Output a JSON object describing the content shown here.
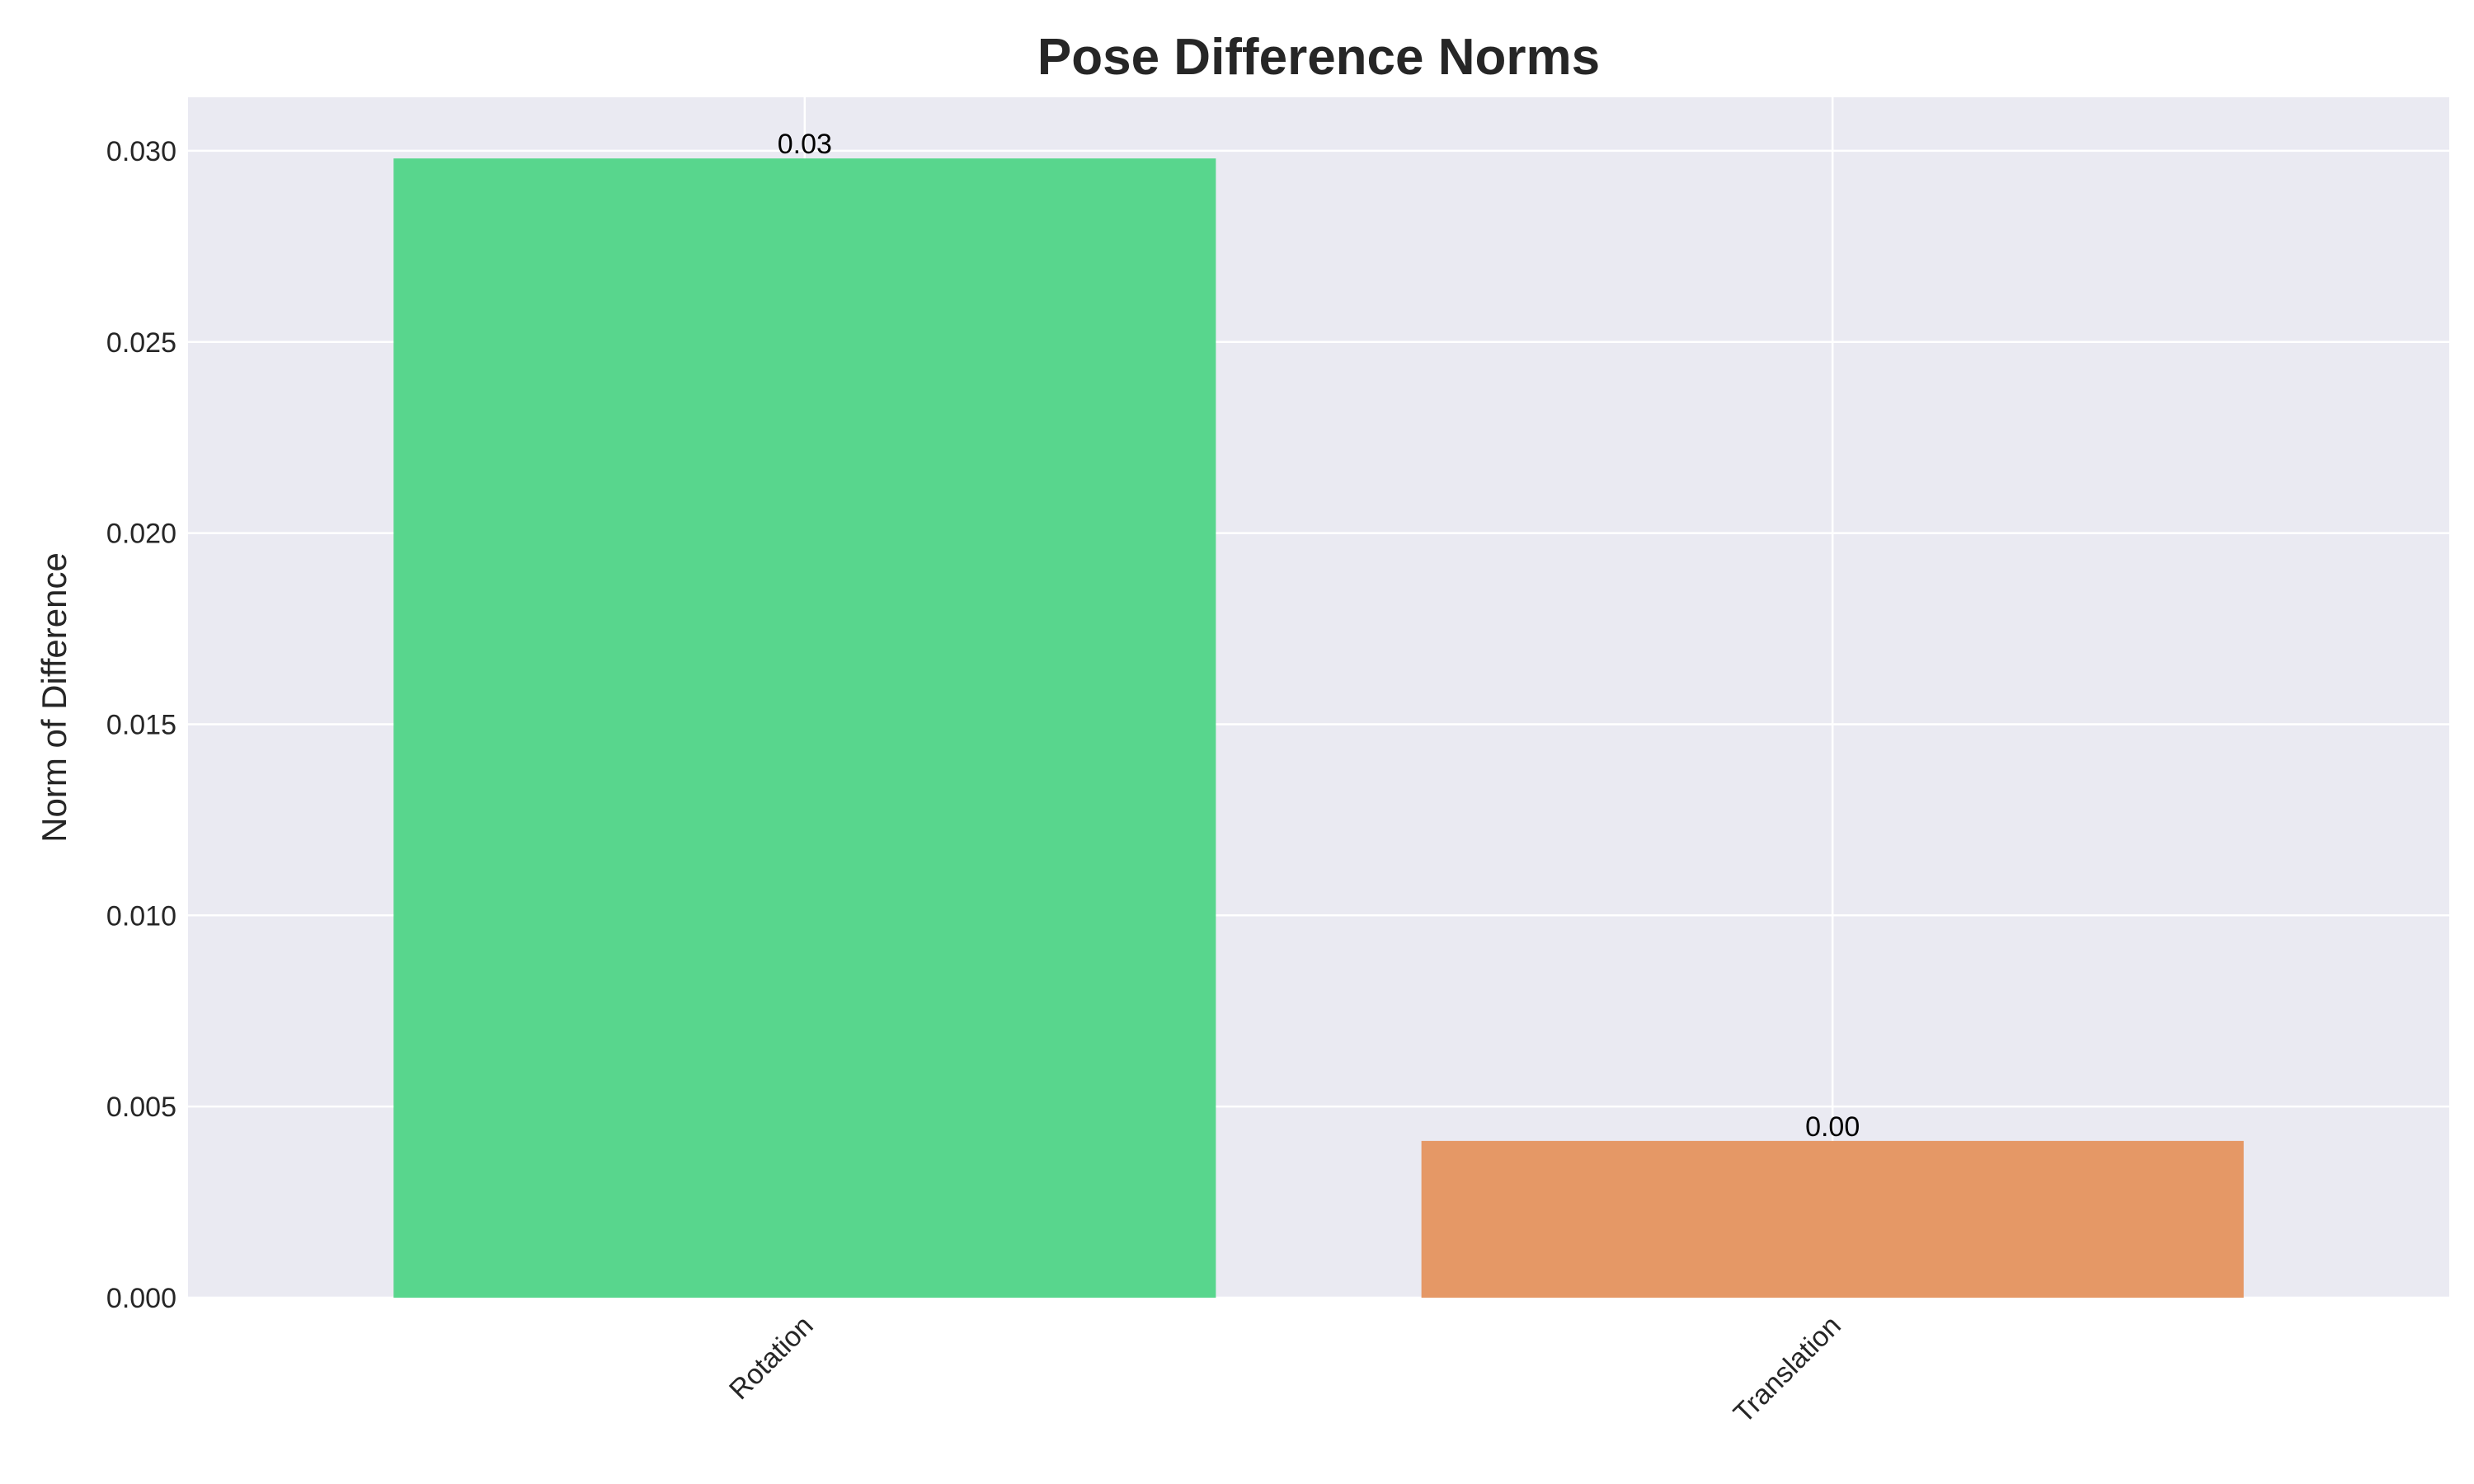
{
  "chart_data": {
    "type": "bar",
    "title": "Pose Difference Norms",
    "xlabel": "",
    "ylabel": "Norm of Difference",
    "categories": [
      "Rotation",
      "Translation"
    ],
    "values": [
      0.0298,
      0.0041
    ],
    "value_labels": [
      "0.03",
      "0.00"
    ],
    "bar_colors": [
      "#58d68d",
      "#e59866"
    ],
    "ylim": [
      0,
      0.0314
    ],
    "yticks": [
      0,
      0.005,
      0.01,
      0.015,
      0.02,
      0.025,
      0.03
    ],
    "ytick_labels": [
      "0.000",
      "0.005",
      "0.010",
      "0.015",
      "0.020",
      "0.025",
      "0.030"
    ],
    "grid": true,
    "background_color": "#eaeaf2",
    "grid_color": "#ffffff",
    "text_color": "#262626"
  }
}
